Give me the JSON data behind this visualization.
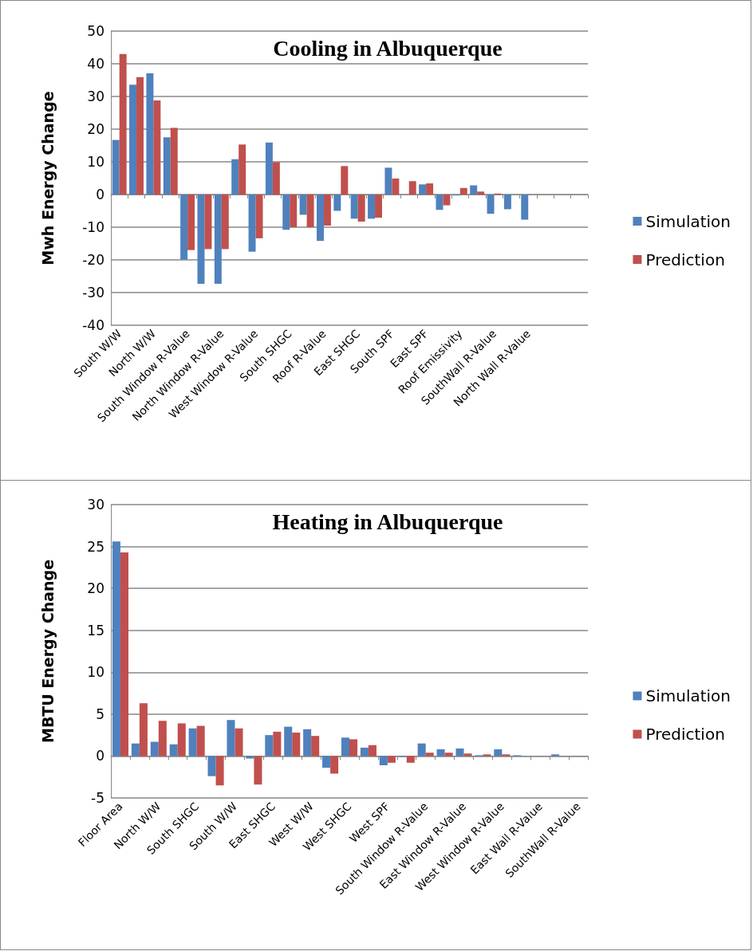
{
  "chart_data": [
    {
      "type": "bar",
      "title": "Cooling in Albuquerque",
      "ylabel": "Mwh Energy Change",
      "categories": [
        "South W/W",
        null,
        "North W/W",
        null,
        "South Window R-Value",
        null,
        "North Window R-Value",
        null,
        "West Window R-Value",
        null,
        "South SHGC",
        null,
        "Roof R-Value",
        null,
        "East SHGC",
        null,
        "South SPF",
        null,
        "East SPF",
        null,
        "Roof Emissivity",
        null,
        "SouthWall R-Value",
        null,
        "North Wall R-Value",
        null,
        null,
        null
      ],
      "series": [
        {
          "name": "Simulation",
          "color": "#4f81bd",
          "values": [
            16.7,
            33.6,
            37.1,
            17.5,
            -19.9,
            -27.3,
            -27.3,
            10.8,
            -17.5,
            15.9,
            -10.8,
            -6.2,
            -14.2,
            -5.0,
            -7.4,
            -7.4,
            8.2,
            0,
            3.1,
            -4.7,
            -0.3,
            2.8,
            -5.9,
            -4.5,
            -7.7,
            0,
            0,
            0
          ]
        },
        {
          "name": "Prediction",
          "color": "#c0504d",
          "values": [
            43.0,
            35.9,
            28.8,
            20.4,
            -17.0,
            -16.7,
            -16.7,
            15.3,
            -13.4,
            9.9,
            -10.0,
            -10.0,
            -9.5,
            8.7,
            -8.3,
            -7.1,
            4.9,
            4.1,
            3.4,
            -3.3,
            2.0,
            0.9,
            0.3,
            0,
            0,
            0,
            0,
            0
          ]
        }
      ],
      "ylim": [
        -40,
        50
      ],
      "yticks": [
        -40,
        -30,
        -20,
        -10,
        0,
        10,
        20,
        30,
        40,
        50
      ],
      "grid": "y",
      "legend": "right"
    },
    {
      "type": "bar",
      "title": "Heating in Albuquerque",
      "ylabel": "MBTU Energy Change",
      "categories": [
        "Floor Area",
        null,
        "North W/W",
        null,
        "South SHGC",
        null,
        "South W/W",
        null,
        "East SHGC",
        null,
        "West W/W",
        null,
        "West SHGC",
        null,
        "West SPF",
        null,
        "South Window R-Value",
        null,
        "East Window R-Value",
        null,
        "West Window R-Value",
        null,
        "East Wall R-Value",
        null,
        "SouthWall R-Value"
      ],
      "series": [
        {
          "name": "Simulation",
          "color": "#4f81bd",
          "values": [
            25.6,
            1.5,
            1.7,
            1.4,
            3.3,
            -2.4,
            4.3,
            -0.3,
            2.5,
            3.5,
            3.2,
            -1.4,
            2.2,
            1.0,
            -1.1,
            -0.1,
            1.5,
            0.8,
            0.9,
            0.1,
            0.8,
            0.1,
            0,
            0.2,
            0
          ]
        },
        {
          "name": "Prediction",
          "color": "#c0504d",
          "values": [
            24.3,
            6.3,
            4.2,
            3.9,
            3.6,
            -3.5,
            3.3,
            -3.4,
            2.9,
            2.8,
            2.4,
            -2.1,
            2.0,
            1.3,
            -0.8,
            -0.8,
            0.4,
            0.4,
            0.3,
            0.2,
            0.2,
            0,
            0,
            0,
            0
          ]
        }
      ],
      "ylim": [
        -5,
        30
      ],
      "yticks": [
        -5,
        0,
        5,
        10,
        15,
        20,
        25,
        30
      ],
      "grid": "y",
      "legend": "right"
    }
  ]
}
